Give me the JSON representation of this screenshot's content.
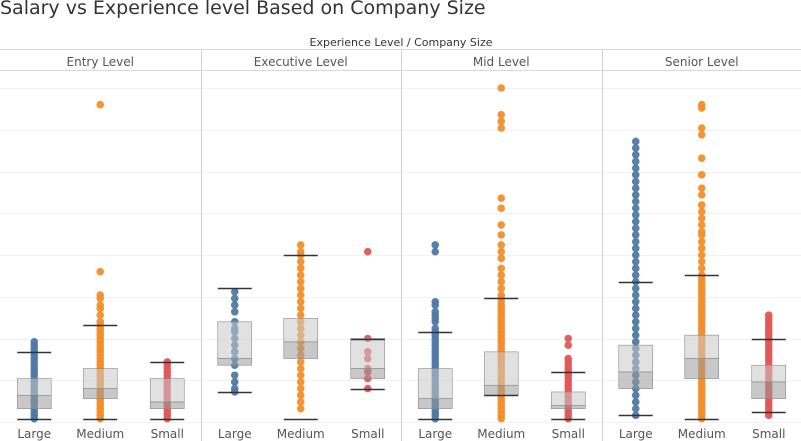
{
  "title": "Salary vs Experience level Based on Company Size",
  "colors": {
    "Large": "#4e79a7",
    "Medium": "#f28e2b",
    "Small": "#e15759"
  },
  "chart_data": {
    "type": "box",
    "title": "Salary vs Experience level Based on Company Size",
    "column_header": "Experience Level  /  Company Size",
    "xlabel": "",
    "ylabel": "",
    "ylim": [
      0,
      100
    ],
    "grid": true,
    "groups": [
      {
        "name": "Entry Level",
        "boxes": [
          {
            "category": "Large",
            "color": "#4e79a7",
            "whisker_low": 1,
            "q1": 4,
            "median": 8,
            "q3": 13,
            "whisker_high": 21,
            "points": [
              1,
              2,
              3,
              4,
              5,
              6,
              6,
              7,
              8,
              8,
              9,
              10,
              11,
              12,
              12,
              13,
              14,
              15,
              16,
              17,
              18,
              19,
              20,
              21,
              22,
              23,
              24
            ]
          },
          {
            "category": "Medium",
            "color": "#f28e2b",
            "whisker_low": 1,
            "q1": 7,
            "median": 10,
            "q3": 16,
            "whisker_high": 29,
            "points": [
              1,
              2,
              3,
              4,
              5,
              6,
              7,
              8,
              9,
              10,
              11,
              12,
              13,
              14,
              15,
              16,
              17,
              18,
              19,
              20,
              21,
              22,
              23,
              24,
              25,
              26,
              27,
              28,
              29,
              30,
              32,
              34,
              35,
              37,
              38,
              45,
              95
            ]
          },
          {
            "category": "Small",
            "color": "#e15759",
            "whisker_low": 1,
            "q1": 4,
            "median": 6,
            "q3": 13,
            "whisker_high": 18,
            "points": [
              1,
              2,
              3,
              4,
              5,
              6,
              7,
              8,
              9,
              10,
              11,
              12,
              13,
              14,
              15,
              16,
              17,
              18
            ]
          }
        ]
      },
      {
        "name": "Executive Level",
        "boxes": [
          {
            "category": "Large",
            "color": "#4e79a7",
            "whisker_low": 9,
            "q1": 17,
            "median": 19,
            "q3": 30,
            "whisker_high": 40,
            "points": [
              9,
              10,
              12,
              14,
              17,
              19,
              21,
              23,
              25,
              27,
              28,
              30,
              33,
              35,
              37,
              39
            ]
          },
          {
            "category": "Medium",
            "color": "#f28e2b",
            "whisker_low": 1,
            "q1": 19,
            "median": 24,
            "q3": 31,
            "whisker_high": 50,
            "points": [
              4,
              6,
              8,
              10,
              12,
              14,
              16,
              18,
              20,
              22,
              24,
              26,
              28,
              30,
              32,
              34,
              36,
              38,
              40,
              42,
              44,
              46,
              48,
              50,
              51,
              53
            ]
          },
          {
            "category": "Small",
            "color": "#e15759",
            "whisker_low": 10,
            "q1": 13,
            "median": 16,
            "q3": 25,
            "whisker_high": 25,
            "points": [
              10,
              13,
              15,
              16,
              19,
              21,
              25,
              51
            ]
          }
        ]
      },
      {
        "name": "Mid Level",
        "boxes": [
          {
            "category": "Large",
            "color": "#4e79a7",
            "whisker_low": 1,
            "q1": 4,
            "median": 7,
            "q3": 16,
            "whisker_high": 27,
            "points": [
              1,
              2,
              3,
              4,
              5,
              6,
              7,
              8,
              9,
              10,
              11,
              12,
              13,
              14,
              15,
              16,
              17,
              18,
              19,
              20,
              21,
              22,
              23,
              24,
              25,
              26,
              27,
              28,
              30,
              31,
              32,
              33,
              35,
              36,
              51,
              53
            ]
          },
          {
            "category": "Medium",
            "color": "#f28e2b",
            "whisker_low": 8,
            "q1": 8,
            "median": 11,
            "q3": 21,
            "whisker_high": 37,
            "points": [
              1,
              2,
              3,
              4,
              5,
              6,
              7,
              8,
              9,
              10,
              11,
              12,
              13,
              14,
              15,
              16,
              17,
              18,
              19,
              20,
              21,
              22,
              23,
              24,
              25,
              26,
              27,
              28,
              29,
              30,
              31,
              32,
              33,
              34,
              35,
              36,
              37,
              38,
              40,
              42,
              44,
              46,
              49,
              51,
              53,
              56,
              59,
              64,
              67,
              88,
              90,
              92,
              100
            ]
          },
          {
            "category": "Small",
            "color": "#e15759",
            "whisker_low": 1,
            "q1": 4,
            "median": 5,
            "q3": 9,
            "whisker_high": 15,
            "points": [
              1,
              2,
              3,
              4,
              5,
              6,
              7,
              8,
              9,
              10,
              11,
              12,
              13,
              14,
              15,
              16,
              17,
              18,
              19,
              23,
              25
            ]
          }
        ]
      },
      {
        "name": "Senior Level",
        "boxes": [
          {
            "category": "Large",
            "color": "#4e79a7",
            "whisker_low": 2,
            "q1": 10,
            "median": 15,
            "q3": 23,
            "whisker_high": 42,
            "points": [
              2,
              4,
              6,
              8,
              10,
              12,
              14,
              16,
              18,
              20,
              22,
              24,
              26,
              28,
              30,
              32,
              34,
              36,
              38,
              40,
              42,
              44,
              46,
              48,
              50,
              52,
              54,
              56,
              58,
              60,
              62,
              64,
              66,
              68,
              70,
              72,
              74,
              76,
              78,
              80,
              82,
              84
            ]
          },
          {
            "category": "Medium",
            "color": "#f28e2b",
            "whisker_low": 1,
            "q1": 13,
            "median": 19,
            "q3": 26,
            "whisker_high": 44,
            "points": [
              1,
              2,
              3,
              4,
              5,
              6,
              7,
              8,
              9,
              10,
              11,
              12,
              13,
              14,
              15,
              16,
              17,
              18,
              19,
              20,
              21,
              22,
              23,
              24,
              25,
              26,
              27,
              28,
              29,
              30,
              31,
              32,
              33,
              34,
              35,
              36,
              37,
              38,
              39,
              40,
              41,
              42,
              43,
              44,
              46,
              48,
              50,
              52,
              54,
              56,
              57,
              59,
              61,
              63,
              65,
              68,
              70,
              74,
              79,
              86,
              88,
              94,
              95
            ]
          },
          {
            "category": "Small",
            "color": "#e15759",
            "whisker_low": 3,
            "q1": 7,
            "median": 12,
            "q3": 17,
            "whisker_high": 25,
            "points": [
              2,
              3,
              4,
              5,
              6,
              7,
              8,
              9,
              10,
              11,
              12,
              13,
              14,
              15,
              16,
              17,
              18,
              19,
              20,
              21,
              22,
              23,
              24,
              25,
              26,
              27,
              28,
              29,
              30,
              31,
              32
            ]
          }
        ]
      }
    ]
  }
}
